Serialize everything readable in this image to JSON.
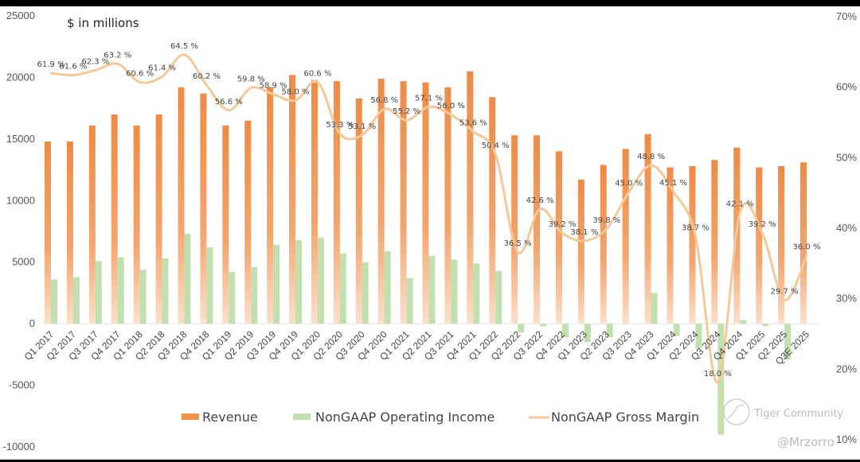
{
  "chart_data": {
    "type": "bar",
    "title": "",
    "subtitle": "$ in millions",
    "categories": [
      "Q1 2017",
      "Q2 2017",
      "Q3 2017",
      "Q4 2017",
      "Q1 2018",
      "Q2 2018",
      "Q3 2018",
      "Q4 2018",
      "Q1 2019",
      "Q2 2019",
      "Q3 2019",
      "Q4 2019",
      "Q1 2020",
      "Q2 2020",
      "Q3 2020",
      "Q4 2020",
      "Q1 2021",
      "Q2 2021",
      "Q3 2021",
      "Q4 2021",
      "Q1 2022",
      "Q2 2022",
      "Q3 2022",
      "Q4 2022",
      "Q1 2023",
      "Q2 2023",
      "Q3 2023",
      "Q4 2023",
      "Q1 2024",
      "Q2 2024",
      "Q3 2024",
      "Q4 2024",
      "Q1 2025",
      "Q2 2025",
      "Q3E 2025"
    ],
    "series": [
      {
        "name": "Revenue",
        "type": "bar",
        "axis": "left",
        "color": "#f0924a",
        "values": [
          14800,
          14800,
          16100,
          17000,
          16100,
          17000,
          19200,
          18700,
          16100,
          16500,
          19200,
          20200,
          19800,
          19700,
          18300,
          19900,
          19700,
          19600,
          19200,
          20500,
          18400,
          15300,
          15300,
          14000,
          11700,
          12900,
          14200,
          15400,
          12700,
          12800,
          13300,
          14300,
          12700,
          12800,
          13100
        ]
      },
      {
        "name": "NonGAAP Operating Income",
        "type": "bar",
        "axis": "left",
        "color": "#b9dca4",
        "values": [
          3600,
          3800,
          5100,
          5400,
          4400,
          5300,
          7300,
          6200,
          4200,
          4600,
          6400,
          6800,
          7000,
          5700,
          5000,
          5900,
          3700,
          5500,
          5200,
          4900,
          4300,
          -700,
          -200,
          -1100,
          -1500,
          -1100,
          0,
          2500,
          -1000,
          -2000,
          -9000,
          300,
          -200,
          -2900,
          0
        ]
      },
      {
        "name": "NonGAAP Gross Margin",
        "type": "line",
        "axis": "right",
        "color": "#f5c89a",
        "values": [
          61.9,
          61.6,
          62.3,
          63.2,
          60.6,
          61.4,
          64.5,
          60.2,
          56.6,
          59.8,
          58.9,
          58.0,
          60.6,
          53.3,
          53.1,
          56.8,
          55.2,
          57.1,
          56.0,
          53.6,
          50.4,
          36.5,
          42.6,
          39.2,
          38.1,
          39.8,
          45.0,
          48.8,
          45.1,
          38.7,
          18.0,
          42.1,
          39.2,
          29.7,
          36.0
        ],
        "labels": [
          "61.9 %",
          "61.6 %",
          "62.3 %",
          "63.2 %",
          "60.6 %",
          "61.4 %",
          "64.5 %",
          "60.2 %",
          "56.6 %",
          "59.8 %",
          "58.9 %",
          "58.0 %",
          "60.6 %",
          "53.3 %",
          "53.1 %",
          "56.8 %",
          "55.2 %",
          "57.1 %",
          "56.0 %",
          "53.6 %",
          "50.4 %",
          "36.5 %",
          "42.6 %",
          "39.2 %",
          "38.1 %",
          "39.8 %",
          "45.0 %",
          "48.8 %",
          "45.1 %",
          "38.7 %",
          "18.0 %",
          "42.1 %",
          "39.2 %",
          "29.7 %",
          "36.0 %"
        ]
      }
    ],
    "left_axis": {
      "ylim": [
        -10000,
        25000
      ],
      "ticks": [
        "25000",
        "20000",
        "15000",
        "10000",
        "5000",
        "0",
        "-5000",
        "-10000"
      ],
      "tick_values": [
        25000,
        20000,
        15000,
        10000,
        5000,
        0,
        -5000,
        -10000
      ]
    },
    "right_axis": {
      "ylim": [
        10,
        70
      ],
      "ticks": [
        "70%",
        "60%",
        "50%",
        "40%",
        "30%",
        "20%",
        "10%"
      ],
      "tick_values": [
        70,
        60,
        50,
        40,
        30,
        20,
        10
      ]
    },
    "xlabel": "",
    "ylabel": "",
    "grid": false,
    "legend": {
      "placement": "bottom",
      "entries": [
        "Revenue",
        "NonGAAP Operating Income",
        "NonGAAP Gross Margin"
      ]
    }
  },
  "watermark": {
    "brand": "Tiger Community",
    "user": "@Mrzorro"
  }
}
